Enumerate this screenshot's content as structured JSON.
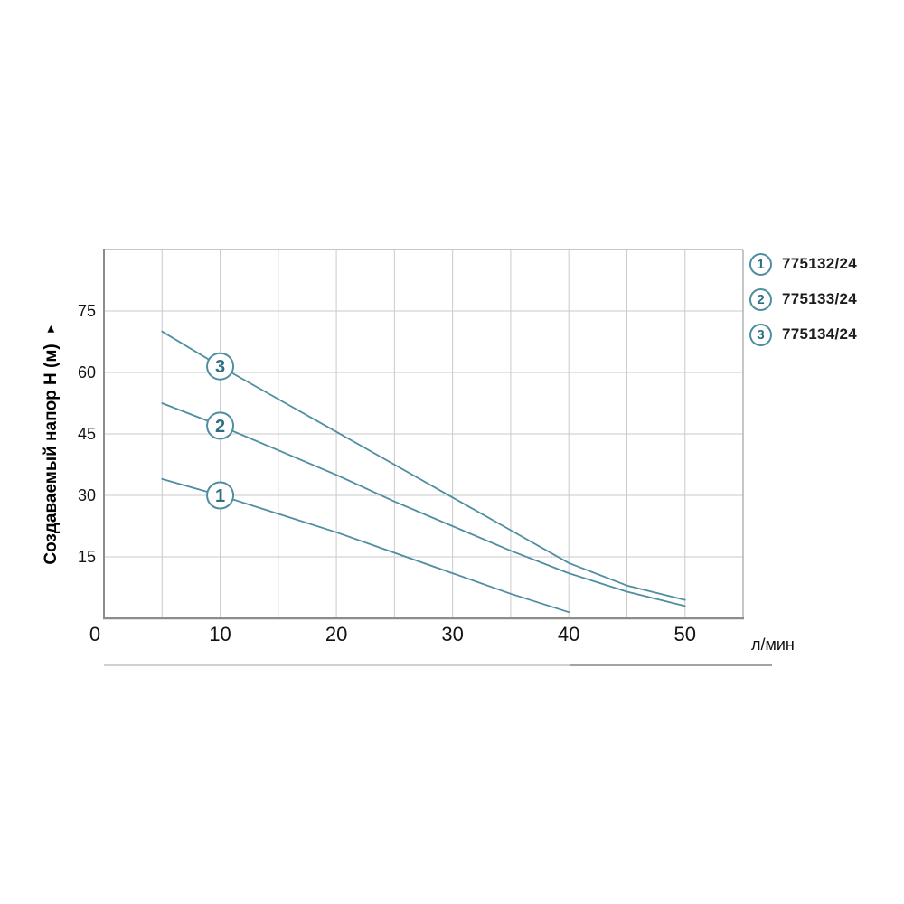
{
  "colors": {
    "curve": "#4f8ea1",
    "curve_text": "#2e7082",
    "grid": "#cacaca",
    "axis": "#8c8c8c",
    "border": "#b3b3b3",
    "text": "#121212"
  },
  "icons": {
    "y_axis_arrow": "►"
  },
  "chart_data": {
    "type": "line",
    "title": "",
    "xlabel": "л/мин",
    "ylabel": "Создаваемый напор H (м)",
    "xlim": [
      0,
      55
    ],
    "ylim": [
      0,
      90
    ],
    "grid": true,
    "x_grid_step": 5,
    "y_grid_step": 15,
    "legend_position": "outside-top-right",
    "x_ticks": [
      {
        "v": 0,
        "label": "0"
      },
      {
        "v": 10,
        "label": "10"
      },
      {
        "v": 20,
        "label": "20"
      },
      {
        "v": 30,
        "label": "30"
      },
      {
        "v": 40,
        "label": "40"
      },
      {
        "v": 50,
        "label": "50"
      }
    ],
    "y_ticks": [
      {
        "v": 75,
        "label": "75"
      },
      {
        "v": 60,
        "label": "60"
      },
      {
        "v": 45,
        "label": "45"
      },
      {
        "v": 30,
        "label": "30"
      },
      {
        "v": 15,
        "label": "15"
      }
    ],
    "series": [
      {
        "id": "1",
        "name": "775132/24",
        "marker_x": 10,
        "points": [
          [
            5,
            34
          ],
          [
            10,
            30
          ],
          [
            15,
            25.5
          ],
          [
            20,
            21
          ],
          [
            25,
            16
          ],
          [
            30,
            11
          ],
          [
            35,
            6
          ],
          [
            40,
            1.5
          ]
        ]
      },
      {
        "id": "2",
        "name": "775133/24",
        "marker_x": 10,
        "points": [
          [
            5,
            52.5
          ],
          [
            10,
            47
          ],
          [
            15,
            41
          ],
          [
            20,
            35
          ],
          [
            25,
            28.5
          ],
          [
            30,
            22.5
          ],
          [
            35,
            16.5
          ],
          [
            40,
            11
          ],
          [
            45,
            6.5
          ],
          [
            50,
            3
          ]
        ]
      },
      {
        "id": "3",
        "name": "775134/24",
        "marker_x": 10,
        "points": [
          [
            5,
            70
          ],
          [
            10,
            61.5
          ],
          [
            15,
            53.5
          ],
          [
            20,
            45.5
          ],
          [
            25,
            37.5
          ],
          [
            30,
            29.5
          ],
          [
            35,
            21.5
          ],
          [
            40,
            13.5
          ],
          [
            45,
            8
          ],
          [
            50,
            4.5
          ]
        ]
      }
    ]
  }
}
